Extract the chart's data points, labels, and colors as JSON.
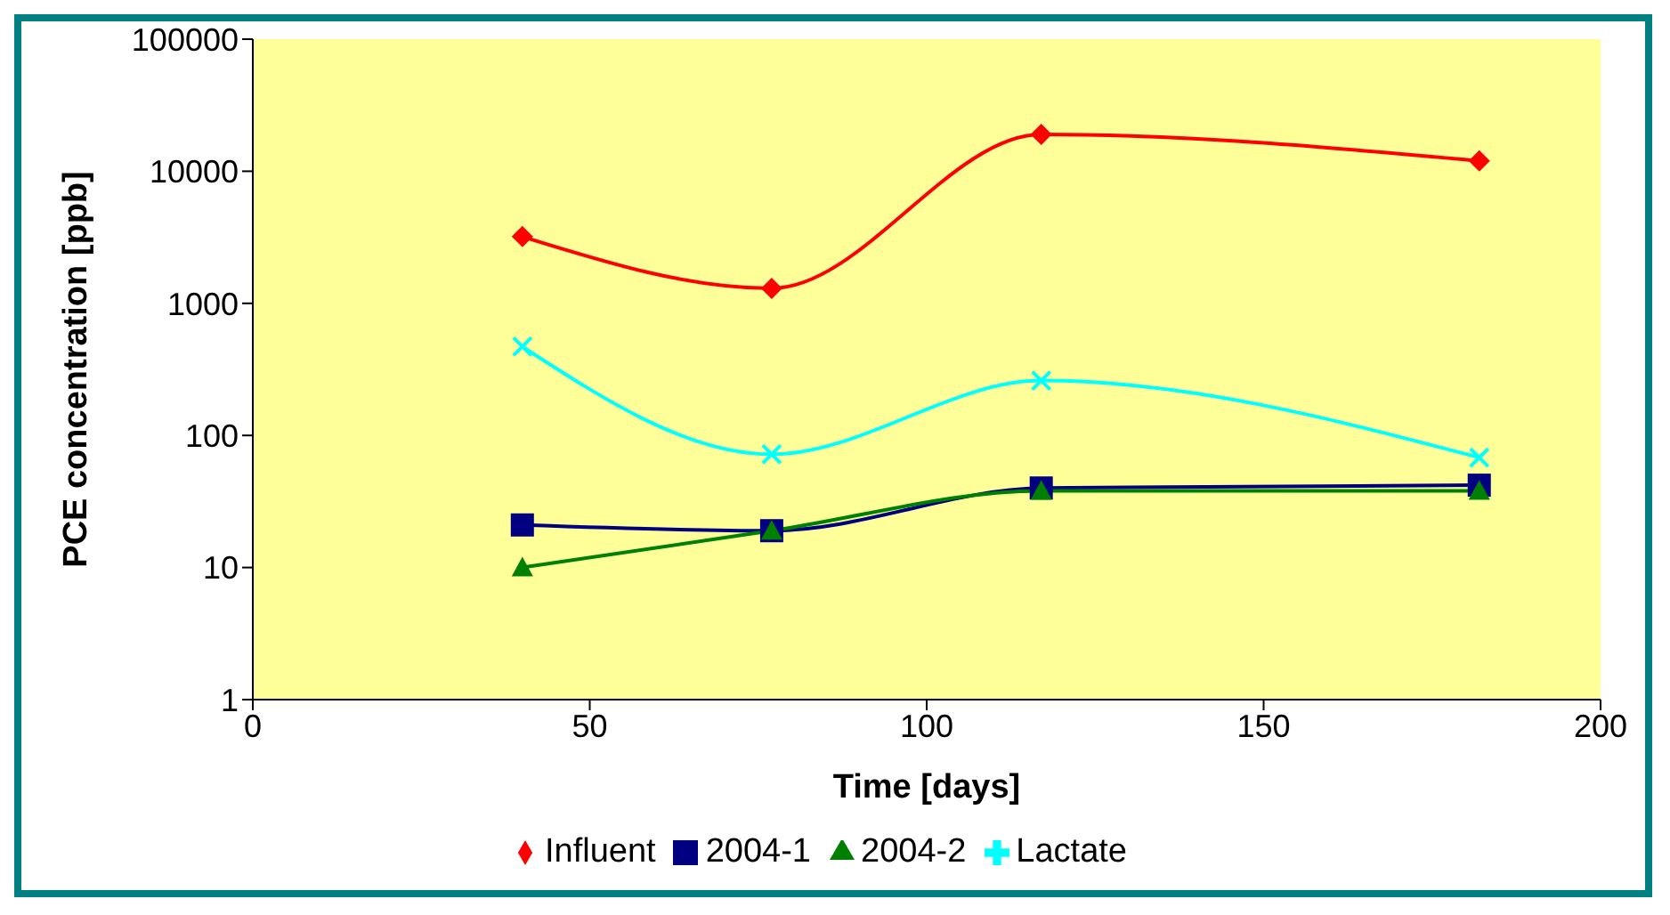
{
  "chart_data": {
    "type": "line",
    "xlabel": "Time [days]",
    "ylabel": "PCE concentration [ppb]",
    "x": [
      40,
      77,
      117,
      182
    ],
    "xlim": [
      0,
      200
    ],
    "xticks": [
      0,
      50,
      100,
      150,
      200
    ],
    "ylim": [
      1,
      100000
    ],
    "yticks": [
      1,
      10,
      100,
      1000,
      10000,
      100000
    ],
    "log": "y",
    "grid": false,
    "legend": "bottom",
    "line_style": "solid",
    "series": [
      {
        "name": "Influent",
        "color": "#ff0000",
        "marker": "diamond",
        "values": [
          3200,
          1300,
          19000,
          12000
        ]
      },
      {
        "name": "2004-1",
        "color": "#000080",
        "marker": "square",
        "values": [
          21,
          19,
          40,
          42
        ]
      },
      {
        "name": "2004-2",
        "color": "#008000",
        "marker": "triangle",
        "values": [
          10,
          19,
          38,
          38
        ]
      },
      {
        "name": "Lactate",
        "color": "#00ffff",
        "marker": "cross",
        "values": [
          470,
          72,
          260,
          68
        ]
      }
    ]
  }
}
